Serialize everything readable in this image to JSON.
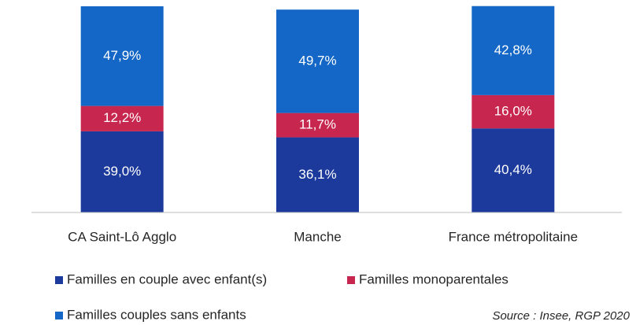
{
  "chart_data": {
    "type": "stacked_bar",
    "categories": [
      "CA Saint-Lô Agglo",
      "Manche",
      "France métropolitaine"
    ],
    "series": [
      {
        "name": "Familles en couple avec enfant(s)",
        "color": "#1c3a9b",
        "values": [
          39.0,
          36.1,
          40.4
        ],
        "value_labels": [
          "39,0%",
          "36,1%",
          "40,4%"
        ]
      },
      {
        "name": "Familles monoparentales",
        "color": "#c7264f",
        "values": [
          12.2,
          11.7,
          16.0
        ],
        "value_labels": [
          "12,2%",
          "11,7%",
          "16,0%"
        ]
      },
      {
        "name": "Familles couples sans enfants",
        "color": "#1467c6",
        "values": [
          47.9,
          49.7,
          42.8
        ],
        "value_labels": [
          "47,9%",
          "49,7%",
          "42,8%"
        ]
      }
    ],
    "ylim": [
      0,
      100
    ],
    "source": "Source : Insee, RGP 2020"
  }
}
